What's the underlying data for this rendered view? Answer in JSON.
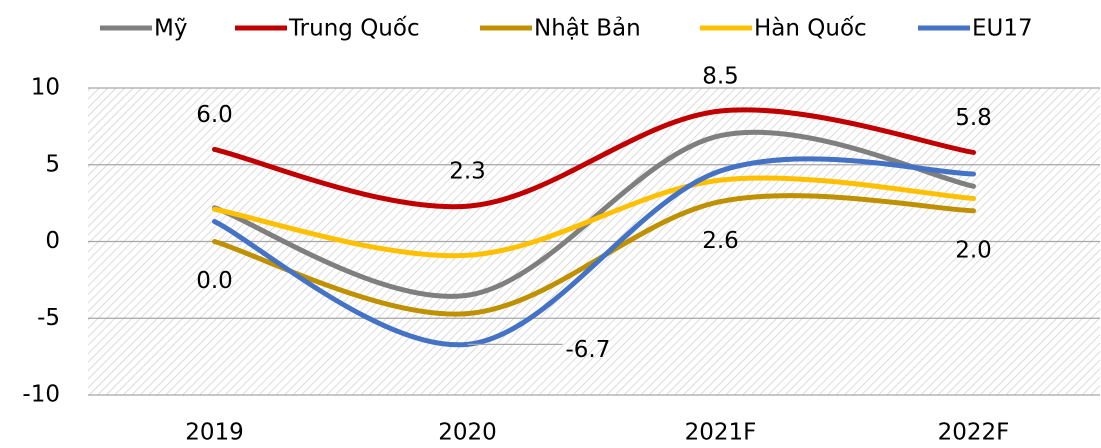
{
  "chart_data": {
    "type": "line",
    "categories": [
      "2019",
      "2020",
      "2021F",
      "2022F"
    ],
    "series": [
      {
        "name": "Mỹ",
        "color": "#7f7f7f",
        "values": [
          2.2,
          -3.5,
          6.9,
          3.6
        ]
      },
      {
        "name": "Trung Quốc",
        "color": "#c00000",
        "values": [
          6.0,
          2.3,
          8.5,
          5.8
        ],
        "value_labels": [
          "6.0",
          "2.3",
          "8.5",
          "5.8"
        ]
      },
      {
        "name": "Nhật Bản",
        "color": "#bf9000",
        "values": [
          0.0,
          -4.7,
          2.6,
          2.0
        ],
        "value_labels": [
          "0.0",
          null,
          "2.6",
          "2.0"
        ]
      },
      {
        "name": "Hàn Quốc",
        "color": "#ffc000",
        "values": [
          2.1,
          -0.9,
          4.0,
          2.8
        ]
      },
      {
        "name": "EU17",
        "color": "#4472c4",
        "values": [
          1.3,
          -6.7,
          4.6,
          4.4
        ],
        "value_labels": [
          null,
          "-6.7",
          null,
          null
        ]
      }
    ],
    "ylim": [
      -10,
      10
    ],
    "yticks": [
      -10,
      -5,
      0,
      5,
      10
    ],
    "grid": true,
    "smooth": true,
    "legend": "top"
  }
}
